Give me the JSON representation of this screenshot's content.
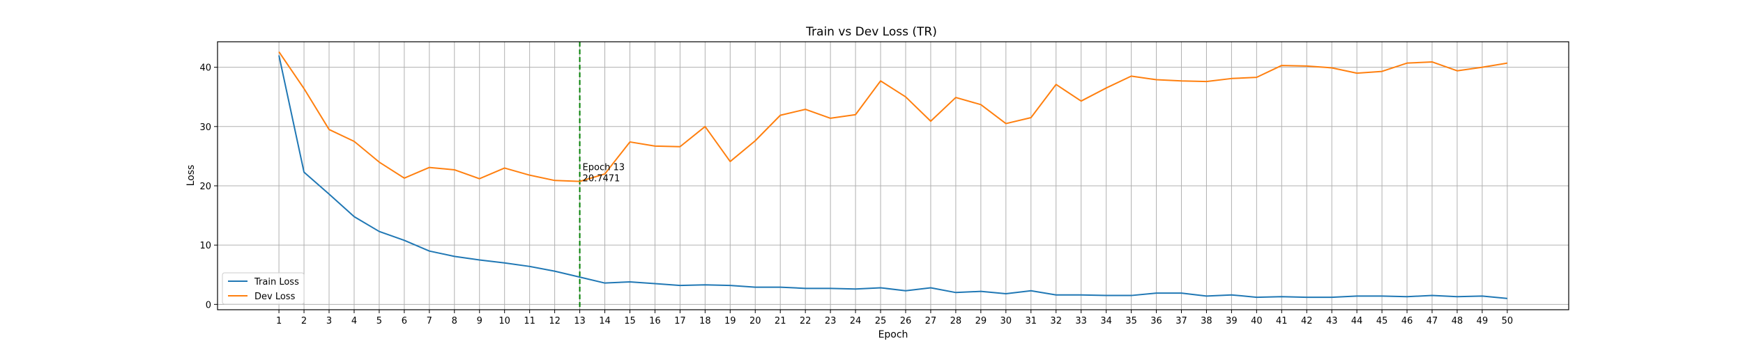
{
  "chart_data": {
    "type": "line",
    "title": "Train vs Dev Loss (TR)",
    "xlabel": "Epoch",
    "ylabel": "Loss",
    "xlim": [
      -1.45,
      52.45
    ],
    "ylim": [
      -0.9,
      44.3
    ],
    "x": [
      1,
      2,
      3,
      4,
      5,
      6,
      7,
      8,
      9,
      10,
      11,
      12,
      13,
      14,
      15,
      16,
      17,
      18,
      19,
      20,
      21,
      22,
      23,
      24,
      25,
      26,
      27,
      28,
      29,
      30,
      31,
      32,
      33,
      34,
      35,
      36,
      37,
      38,
      39,
      40,
      41,
      42,
      43,
      44,
      45,
      46,
      47,
      48,
      49,
      50
    ],
    "xticks": [
      "1",
      "2",
      "3",
      "4",
      "5",
      "6",
      "7",
      "8",
      "9",
      "10",
      "11",
      "12",
      "13",
      "14",
      "15",
      "16",
      "17",
      "18",
      "19",
      "20",
      "21",
      "22",
      "23",
      "24",
      "25",
      "26",
      "27",
      "28",
      "29",
      "30",
      "31",
      "32",
      "33",
      "34",
      "35",
      "36",
      "37",
      "38",
      "39",
      "40",
      "41",
      "42",
      "43",
      "44",
      "45",
      "46",
      "47",
      "48",
      "49",
      "50"
    ],
    "yticks": [
      0,
      10,
      20,
      30,
      40
    ],
    "ytick_labels": [
      "0",
      "10",
      "20",
      "30",
      "40"
    ],
    "grid": true,
    "legend_position": "lower-left",
    "series": [
      {
        "name": "Train Loss",
        "color": "#1f77b4",
        "values": [
          42.0,
          22.3,
          18.6,
          14.8,
          12.3,
          10.8,
          9.0,
          8.1,
          7.5,
          7.0,
          6.4,
          5.6,
          4.6,
          3.6,
          3.8,
          3.5,
          3.2,
          3.3,
          3.2,
          2.9,
          2.9,
          2.7,
          2.7,
          2.6,
          2.8,
          2.3,
          2.8,
          2.0,
          2.2,
          1.8,
          2.3,
          1.6,
          1.6,
          1.5,
          1.5,
          1.9,
          1.9,
          1.4,
          1.6,
          1.2,
          1.3,
          1.2,
          1.2,
          1.4,
          1.4,
          1.3,
          1.5,
          1.3,
          1.4,
          1.0
        ]
      },
      {
        "name": "Dev Loss",
        "color": "#ff7f0e",
        "values": [
          42.6,
          36.4,
          29.5,
          27.5,
          24.0,
          21.3,
          23.1,
          22.7,
          21.2,
          23.0,
          21.8,
          20.9,
          20.7471,
          22.0,
          27.4,
          26.7,
          26.6,
          30.0,
          24.1,
          27.6,
          31.9,
          32.9,
          31.4,
          32.0,
          37.7,
          35.0,
          30.9,
          34.9,
          33.7,
          30.5,
          31.5,
          37.1,
          34.3,
          36.5,
          38.5,
          37.9,
          37.7,
          37.6,
          38.1,
          38.3,
          40.3,
          40.2,
          39.9,
          39.0,
          39.3,
          40.7,
          40.9,
          39.4,
          40.0,
          40.7
        ]
      }
    ],
    "best_epoch_line": {
      "x": 13,
      "color": "#008000"
    },
    "annotation": {
      "x": 13,
      "y": 20.7471,
      "line1": "Epoch 13",
      "line2": "20.7471"
    }
  }
}
